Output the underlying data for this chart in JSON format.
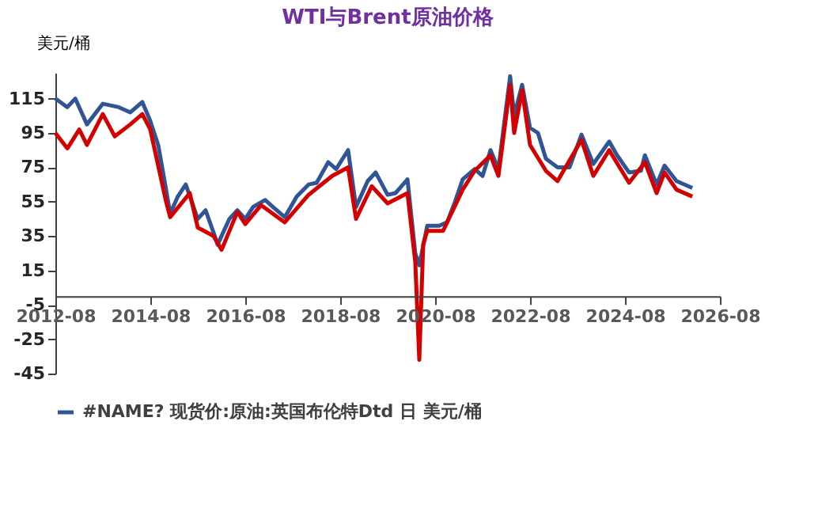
{
  "chart_data": {
    "type": "line",
    "title": "WTI与Brent原油价格",
    "ylabel": "美元/桶",
    "legend": "bottom",
    "grid": false,
    "marker": "none",
    "line_style": "solid",
    "ylim": [
      -45,
      130
    ],
    "yticks": [
      -45,
      -25,
      -5,
      15,
      35,
      55,
      75,
      95,
      115
    ],
    "xlim": [
      "2012-08",
      "2026-08"
    ],
    "xticks": [
      "2012-08",
      "2014-08",
      "2016-08",
      "2018-08",
      "2020-08",
      "2022-08",
      "2024-08",
      "2026-08"
    ],
    "series": [
      {
        "name": "#NAME? 现货价:原油:英国布伦特Dtd 日 美元/桶",
        "color": "#2f5597",
        "x": [
          "2012-08",
          "2012-11",
          "2013-01",
          "2013-04",
          "2013-08",
          "2013-12",
          "2014-03",
          "2014-06",
          "2014-08",
          "2014-10",
          "2014-12",
          "2015-01",
          "2015-03",
          "2015-05",
          "2015-08",
          "2015-10",
          "2015-12",
          "2016-01",
          "2016-04",
          "2016-06",
          "2016-08",
          "2016-10",
          "2017-01",
          "2017-03",
          "2017-06",
          "2017-09",
          "2017-12",
          "2018-02",
          "2018-05",
          "2018-07",
          "2018-10",
          "2018-12",
          "2019-03",
          "2019-05",
          "2019-08",
          "2019-10",
          "2020-01",
          "2020-03",
          "2020-04",
          "2020-06",
          "2020-09",
          "2020-11",
          "2021-01",
          "2021-03",
          "2021-06",
          "2021-08",
          "2021-10",
          "2021-12",
          "2022-03",
          "2022-04",
          "2022-06",
          "2022-08",
          "2022-10",
          "2022-12",
          "2023-03",
          "2023-06",
          "2023-09",
          "2023-12",
          "2024-04",
          "2024-06",
          "2024-09",
          "2024-12",
          "2025-01",
          "2025-04",
          "2025-06",
          "2025-09",
          "2026-01"
        ],
        "values": [
          115,
          110,
          115,
          100,
          112,
          110,
          107,
          113,
          102,
          88,
          62,
          48,
          58,
          65,
          45,
          50,
          37,
          30,
          45,
          50,
          45,
          52,
          56,
          52,
          46,
          58,
          65,
          66,
          78,
          74,
          85,
          52,
          67,
          72,
          59,
          60,
          68,
          25,
          18,
          41,
          41,
          43,
          55,
          68,
          74,
          70,
          85,
          74,
          128,
          105,
          123,
          98,
          95,
          80,
          75,
          75,
          94,
          77,
          90,
          82,
          72,
          73,
          82,
          65,
          76,
          67,
          63
        ]
      },
      {
        "color": "#d40000",
        "x": [
          "2012-08",
          "2012-11",
          "2013-02",
          "2013-04",
          "2013-08",
          "2013-11",
          "2014-03",
          "2014-06",
          "2014-08",
          "2014-12",
          "2015-01",
          "2015-06",
          "2015-08",
          "2015-12",
          "2016-02",
          "2016-06",
          "2016-08",
          "2016-12",
          "2017-06",
          "2017-12",
          "2018-06",
          "2018-10",
          "2018-12",
          "2019-04",
          "2019-08",
          "2020-01",
          "2020-03",
          "2020-04",
          "2020-05",
          "2020-06",
          "2020-10",
          "2021-03",
          "2021-06",
          "2021-10",
          "2021-12",
          "2022-03",
          "2022-04",
          "2022-06",
          "2022-08",
          "2022-12",
          "2023-03",
          "2023-09",
          "2023-12",
          "2024-04",
          "2024-09",
          "2025-01",
          "2025-04",
          "2025-06",
          "2025-09",
          "2026-01"
        ],
        "values": [
          95,
          86,
          97,
          88,
          106,
          93,
          100,
          106,
          97,
          55,
          46,
          60,
          40,
          35,
          27,
          49,
          42,
          53,
          43,
          59,
          70,
          75,
          45,
          64,
          54,
          60,
          20,
          -37,
          30,
          38,
          38,
          62,
          73,
          82,
          70,
          123,
          95,
          120,
          88,
          73,
          67,
          91,
          70,
          85,
          66,
          78,
          60,
          72,
          62,
          58
        ]
      }
    ]
  }
}
